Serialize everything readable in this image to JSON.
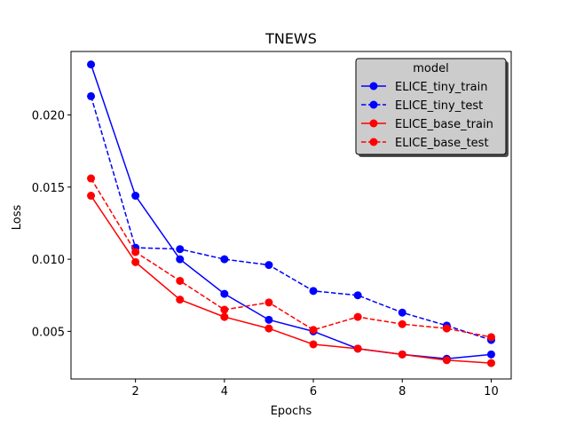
{
  "chart_data": {
    "type": "line",
    "title": "TNEWS",
    "xlabel": "Epochs",
    "ylabel": "Loss",
    "x": [
      1,
      2,
      3,
      4,
      5,
      6,
      7,
      8,
      9,
      10
    ],
    "xlim": [
      0.55,
      10.45
    ],
    "ylim": [
      0.0017,
      0.0244
    ],
    "xticks": [
      2,
      4,
      6,
      8,
      10
    ],
    "xtick_labels": [
      "2",
      "4",
      "6",
      "8",
      "10"
    ],
    "yticks": [
      0.005,
      0.01,
      0.015,
      0.02
    ],
    "ytick_labels": [
      "0.005",
      "0.010",
      "0.015",
      "0.020"
    ],
    "grid": false,
    "legend": {
      "title": "model",
      "placement": "top-right"
    },
    "series": [
      {
        "name": "ELICE_tiny_train",
        "color": "#0000ff",
        "linestyle": "solid",
        "values": [
          0.0235,
          0.0144,
          0.01,
          0.0076,
          0.0058,
          0.005,
          0.0038,
          0.0034,
          0.0031,
          0.0034
        ]
      },
      {
        "name": "ELICE_tiny_test",
        "color": "#0000ff",
        "linestyle": "dashed",
        "values": [
          0.0213,
          0.0108,
          0.0107,
          0.01,
          0.0096,
          0.0078,
          0.0075,
          0.0063,
          0.0054,
          0.0044
        ]
      },
      {
        "name": "ELICE_base_train",
        "color": "#ff0000",
        "linestyle": "solid",
        "values": [
          0.0144,
          0.0098,
          0.0072,
          0.006,
          0.0052,
          0.0041,
          0.0038,
          0.0034,
          0.003,
          0.0028
        ]
      },
      {
        "name": "ELICE_base_test",
        "color": "#ff0000",
        "linestyle": "dashed",
        "values": [
          0.0156,
          0.0105,
          0.0085,
          0.0065,
          0.007,
          0.0051,
          0.006,
          0.0055,
          0.0052,
          0.0046
        ]
      }
    ]
  }
}
